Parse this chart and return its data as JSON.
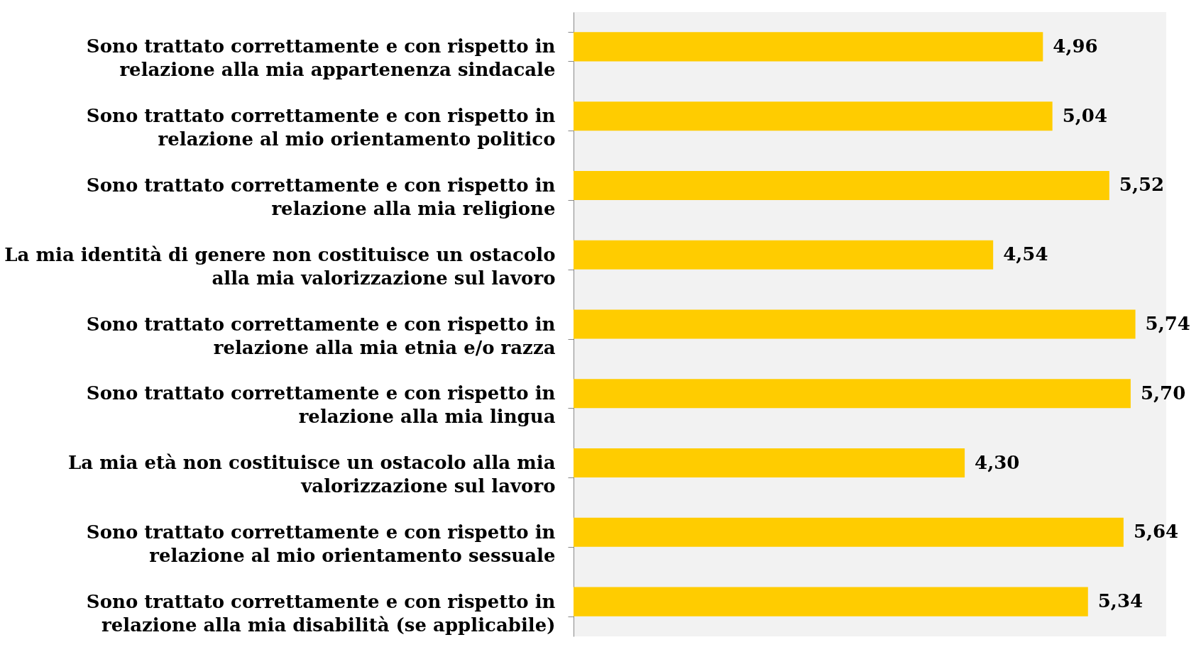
{
  "chart_data": {
    "type": "bar",
    "orientation": "horizontal",
    "categories": [
      "Sono trattato correttamente e con rispetto in relazione alla mia appartenenza sindacale",
      "Sono trattato correttamente e con rispetto in relazione al mio orientamento politico",
      "Sono trattato correttamente e con rispetto in relazione alla mia religione",
      "La mia identità di genere non costituisce un ostacolo alla mia valorizzazione sul lavoro",
      "Sono trattato correttamente e con rispetto in relazione alla mia etnia e/o razza",
      "Sono trattato correttamente e con rispetto in relazione alla mia lingua",
      "La mia età non costituisce un ostacolo alla mia valorizzazione sul lavoro",
      "Sono trattato correttamente e con rispetto in relazione al mio orientamento sessuale",
      "Sono trattato correttamente e con rispetto in relazione alla mia disabilità (se applicabile)"
    ],
    "values": [
      4.96,
      5.04,
      5.52,
      4.54,
      5.74,
      5.7,
      4.3,
      5.64,
      5.34
    ],
    "value_labels": [
      "4,96",
      "5,04",
      "5,52",
      "4,54",
      "5,74",
      "5,70",
      "4,30",
      "5,64",
      "5,34"
    ],
    "color": "#ffcc00",
    "xlim": [
      1,
      6
    ],
    "tick_labels": "y"
  }
}
